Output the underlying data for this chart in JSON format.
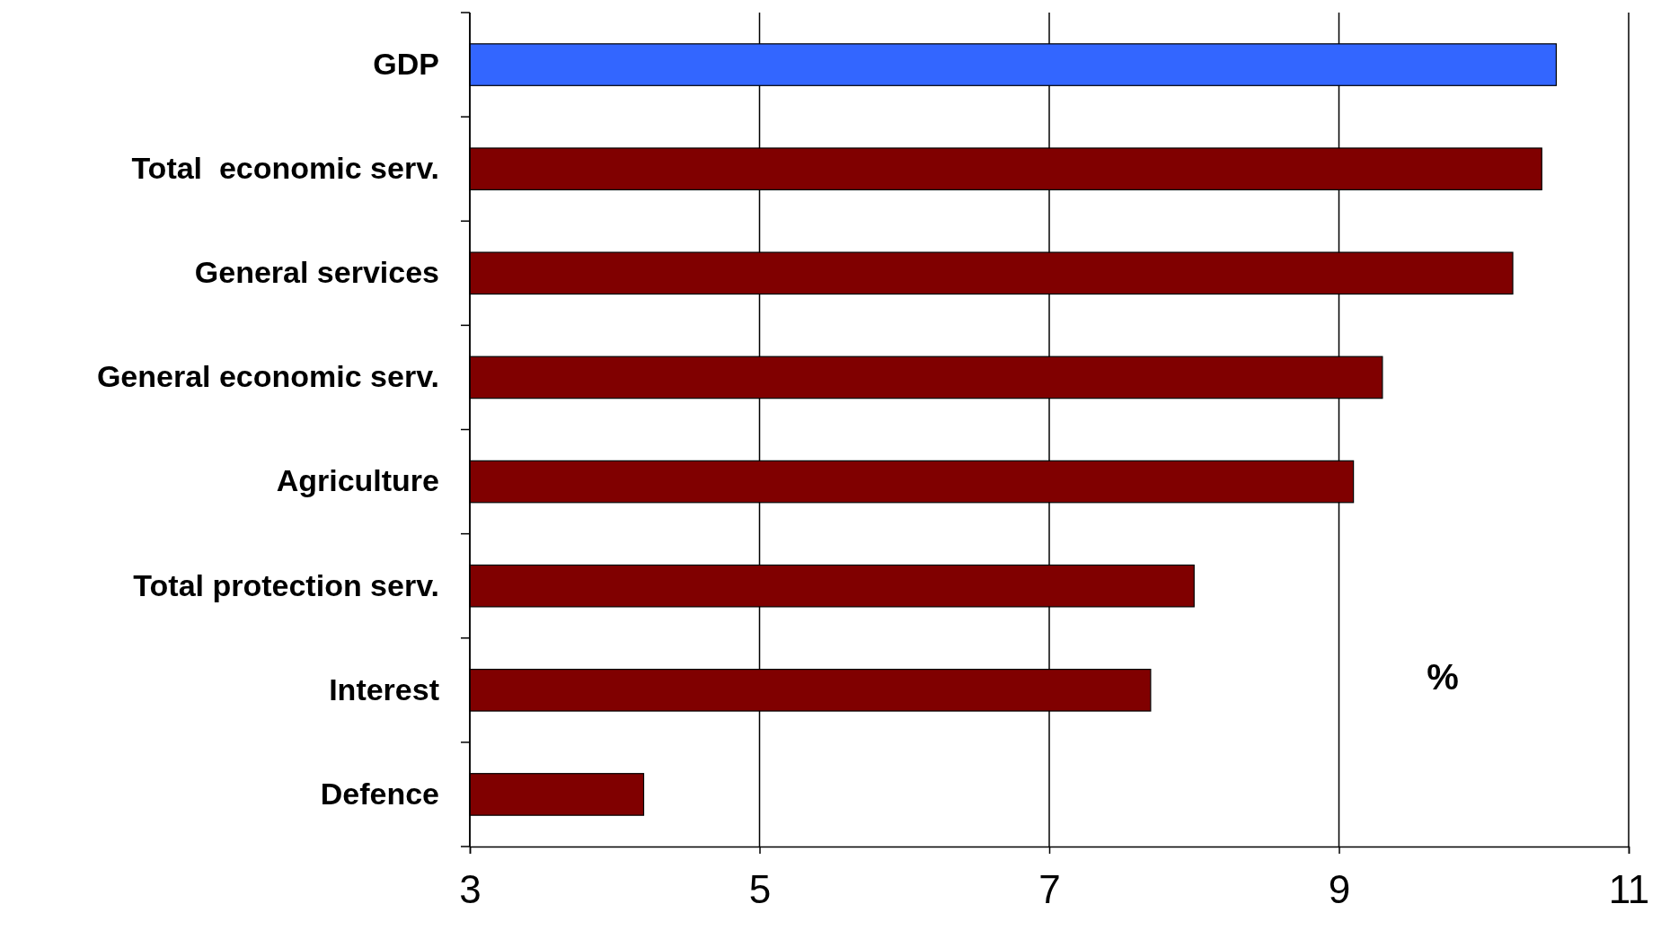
{
  "chart_data": {
    "type": "bar",
    "orientation": "horizontal",
    "categories": [
      "GDP",
      "Total  economic serv.",
      "General services",
      "General economic serv.",
      "Agriculture",
      "Total protection serv.",
      "Interest",
      "Defence"
    ],
    "values": [
      10.5,
      10.4,
      10.2,
      9.3,
      9.1,
      8.0,
      7.7,
      4.2
    ],
    "colors": [
      "#3366ff",
      "#800000",
      "#800000",
      "#800000",
      "#800000",
      "#800000",
      "#800000",
      "#800000"
    ],
    "xlim": [
      3,
      11
    ],
    "xticks": [
      3,
      5,
      7,
      9,
      11
    ],
    "grid": "x",
    "annotations": [
      "%"
    ]
  }
}
